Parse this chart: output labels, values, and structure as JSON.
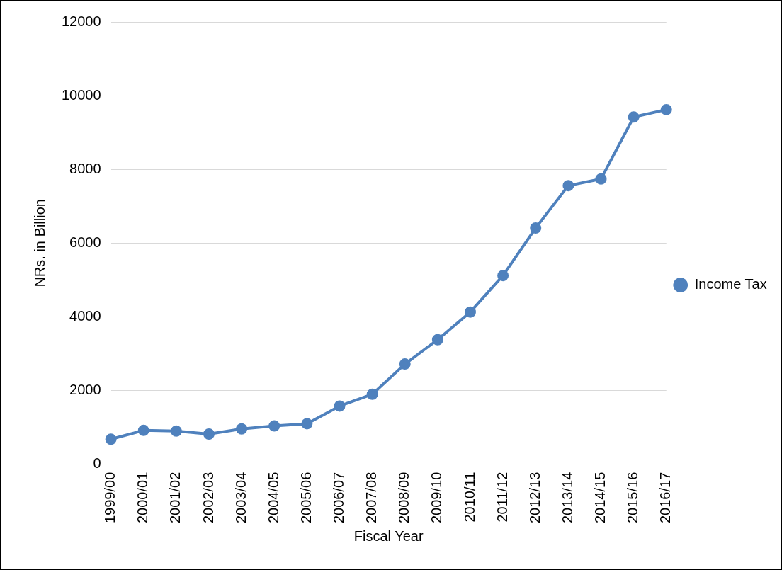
{
  "chart_data": {
    "type": "line",
    "xlabel": "Fiscal Year",
    "ylabel": "NRs. in Billion",
    "categories": [
      "1999/00",
      "2000/01",
      "2001/02",
      "2002/03",
      "2003/04",
      "2004/05",
      "2005/06",
      "2006/07",
      "2007/08",
      "2008/09",
      "2009/10",
      "2010/11",
      "2011/12",
      "2012/13",
      "2013/14",
      "2014/15",
      "2015/16",
      "2016/17"
    ],
    "series": [
      {
        "name": "Income Tax",
        "color": "#4f81bd",
        "values": [
          680,
          920,
          900,
          820,
          960,
          1040,
          1100,
          1580,
          1900,
          2720,
          3380,
          4130,
          5120,
          6410,
          7560,
          7740,
          9420,
          9620
        ]
      }
    ],
    "ylim": [
      0,
      12000
    ],
    "yticks": [
      0,
      2000,
      4000,
      6000,
      8000,
      10000,
      12000
    ],
    "grid": "y",
    "legend": "right",
    "marker": "circle",
    "line_style": "solid"
  }
}
